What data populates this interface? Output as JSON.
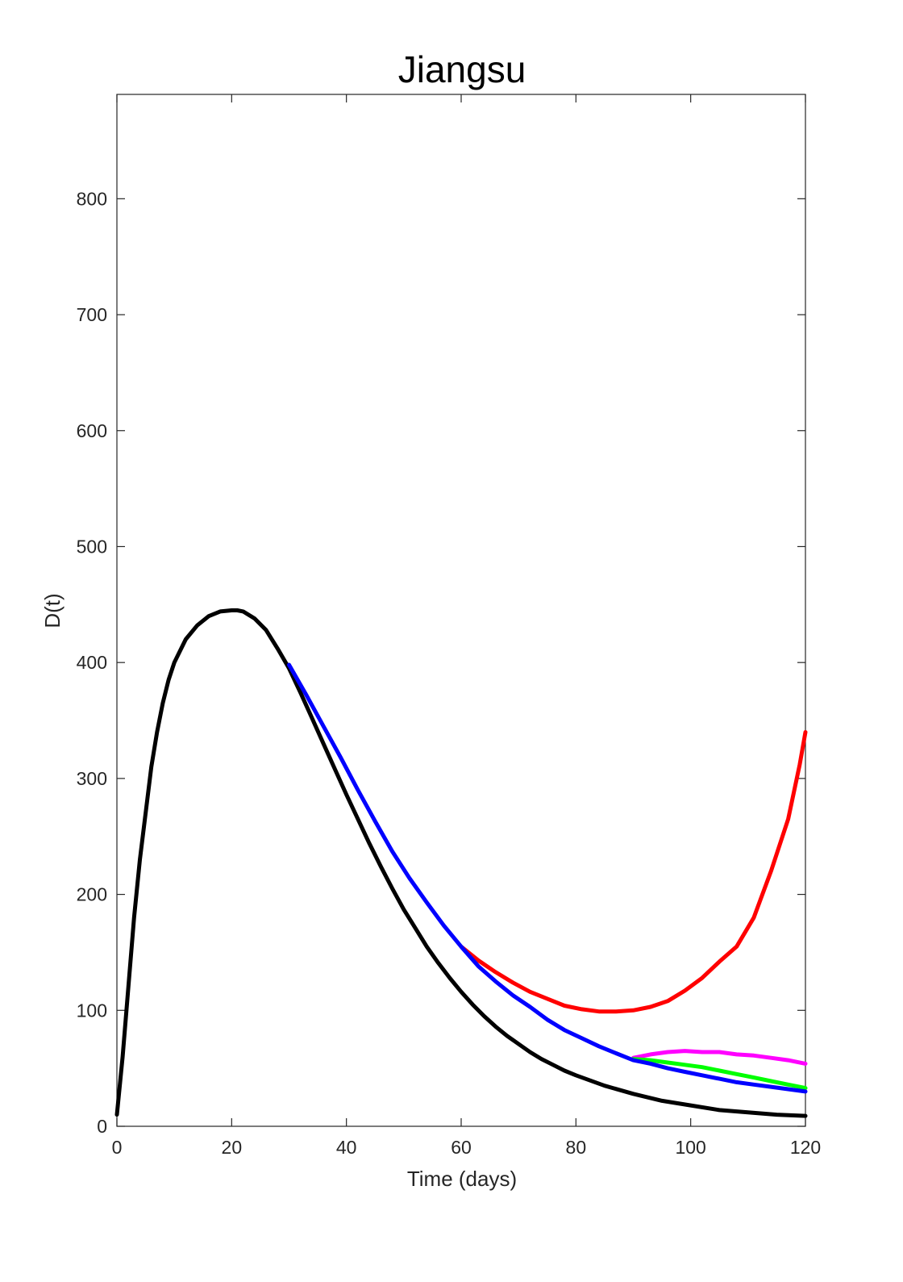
{
  "chart_data": {
    "type": "line",
    "title": "Jiangsu",
    "xlabel": "Time (days)",
    "ylabel": "D(t)",
    "xlim": [
      0,
      120
    ],
    "ylim": [
      0,
      890
    ],
    "xticks": [
      0,
      20,
      40,
      60,
      80,
      100,
      120
    ],
    "yticks": [
      0,
      100,
      200,
      300,
      400,
      500,
      600,
      700,
      800
    ],
    "grid": false,
    "legend": "none",
    "series": [
      {
        "color": "#000000",
        "points": [
          [
            0,
            10
          ],
          [
            1,
            60
          ],
          [
            2,
            120
          ],
          [
            3,
            180
          ],
          [
            4,
            230
          ],
          [
            5,
            270
          ],
          [
            6,
            310
          ],
          [
            7,
            340
          ],
          [
            8,
            365
          ],
          [
            9,
            385
          ],
          [
            10,
            400
          ],
          [
            12,
            420
          ],
          [
            14,
            432
          ],
          [
            16,
            440
          ],
          [
            18,
            444
          ],
          [
            20,
            445
          ],
          [
            21,
            445
          ],
          [
            22,
            444
          ],
          [
            24,
            438
          ],
          [
            26,
            428
          ],
          [
            28,
            412
          ],
          [
            30,
            395
          ],
          [
            32,
            374
          ],
          [
            34,
            352
          ],
          [
            36,
            330
          ],
          [
            38,
            308
          ],
          [
            40,
            286
          ],
          [
            42,
            265
          ],
          [
            44,
            244
          ],
          [
            46,
            224
          ],
          [
            48,
            205
          ],
          [
            50,
            187
          ],
          [
            52,
            171
          ],
          [
            54,
            155
          ],
          [
            56,
            141
          ],
          [
            58,
            128
          ],
          [
            60,
            116
          ],
          [
            62,
            105
          ],
          [
            64,
            95
          ],
          [
            66,
            86
          ],
          [
            68,
            78
          ],
          [
            70,
            71
          ],
          [
            72,
            64
          ],
          [
            74,
            58
          ],
          [
            76,
            53
          ],
          [
            78,
            48
          ],
          [
            80,
            44
          ],
          [
            85,
            35
          ],
          [
            90,
            28
          ],
          [
            95,
            22
          ],
          [
            100,
            18
          ],
          [
            105,
            14
          ],
          [
            110,
            12
          ],
          [
            115,
            10
          ],
          [
            120,
            9
          ]
        ]
      },
      {
        "color": "#0000ff",
        "points": [
          [
            30,
            398
          ],
          [
            33,
            372
          ],
          [
            36,
            345
          ],
          [
            39,
            318
          ],
          [
            42,
            290
          ],
          [
            45,
            263
          ],
          [
            48,
            237
          ],
          [
            51,
            214
          ],
          [
            54,
            193
          ],
          [
            57,
            173
          ],
          [
            60,
            155
          ],
          [
            63,
            138
          ],
          [
            66,
            125
          ],
          [
            69,
            113
          ],
          [
            72,
            103
          ],
          [
            75,
            92
          ],
          [
            78,
            83
          ],
          [
            81,
            76
          ],
          [
            84,
            69
          ],
          [
            87,
            63
          ],
          [
            90,
            57
          ],
          [
            93,
            54
          ],
          [
            96,
            50
          ],
          [
            99,
            47
          ],
          [
            102,
            44
          ],
          [
            105,
            41
          ],
          [
            108,
            38
          ],
          [
            111,
            36
          ],
          [
            114,
            34
          ],
          [
            117,
            32
          ],
          [
            120,
            30
          ]
        ]
      },
      {
        "color": "#ff0000",
        "points": [
          [
            60,
            155
          ],
          [
            63,
            143
          ],
          [
            66,
            133
          ],
          [
            69,
            124
          ],
          [
            72,
            116
          ],
          [
            75,
            110
          ],
          [
            78,
            104
          ],
          [
            81,
            101
          ],
          [
            84,
            99
          ],
          [
            87,
            99
          ],
          [
            90,
            100
          ],
          [
            93,
            103
          ],
          [
            96,
            108
          ],
          [
            99,
            117
          ],
          [
            102,
            128
          ],
          [
            105,
            142
          ],
          [
            108,
            155
          ],
          [
            111,
            180
          ],
          [
            114,
            220
          ],
          [
            117,
            265
          ],
          [
            119,
            312
          ],
          [
            120,
            340
          ]
        ]
      },
      {
        "color": "#ff00ff",
        "points": [
          [
            90,
            59
          ],
          [
            93,
            62
          ],
          [
            96,
            64
          ],
          [
            99,
            65
          ],
          [
            102,
            64
          ],
          [
            105,
            64
          ],
          [
            108,
            62
          ],
          [
            111,
            61
          ],
          [
            114,
            59
          ],
          [
            117,
            57
          ],
          [
            120,
            54
          ]
        ]
      },
      {
        "color": "#00ff00",
        "points": [
          [
            90,
            58
          ],
          [
            93,
            57
          ],
          [
            96,
            55
          ],
          [
            99,
            53
          ],
          [
            102,
            51
          ],
          [
            105,
            48
          ],
          [
            108,
            45
          ],
          [
            111,
            42
          ],
          [
            114,
            39
          ],
          [
            117,
            36
          ],
          [
            120,
            33
          ]
        ]
      }
    ]
  }
}
